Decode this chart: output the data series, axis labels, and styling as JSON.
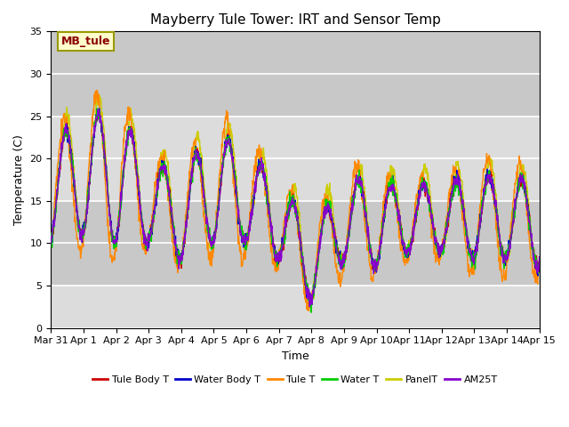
{
  "title": "Mayberry Tule Tower: IRT and Sensor Temp",
  "xlabel": "Time",
  "ylabel": "Temperature (C)",
  "ylim": [
    0,
    35
  ],
  "xtick_labels": [
    "Mar 31",
    "Apr 1",
    "Apr 2",
    "Apr 3",
    "Apr 4",
    "Apr 5",
    "Apr 6",
    "Apr 7",
    "Apr 8",
    "Apr 9",
    "Apr 10",
    "Apr 11",
    "Apr 12",
    "Apr 13",
    "Apr 14",
    "Apr 15"
  ],
  "legend_entries": [
    "Tule Body T",
    "Water Body T",
    "Tule T",
    "Water T",
    "PanelT",
    "AM25T"
  ],
  "line_colors": [
    "#cc0000",
    "#0000cc",
    "#ff8800",
    "#00cc00",
    "#cccc00",
    "#8800cc"
  ],
  "annotation_text": "MB_tule",
  "bg_color": "#dcdcdc",
  "fig_bg": "#ffffff",
  "grid_color": "#ffffff",
  "title_fontsize": 11,
  "axis_fontsize": 9,
  "tick_fontsize": 8
}
